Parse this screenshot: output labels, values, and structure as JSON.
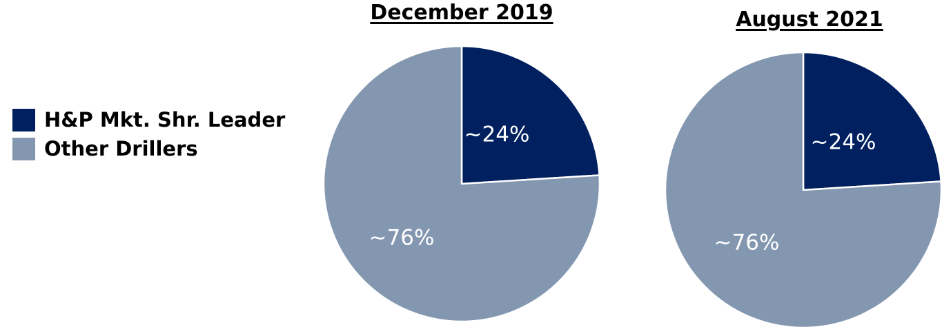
{
  "legend": {
    "items": [
      {
        "label": "H&P Mkt. Shr. Leader",
        "color": "#012060"
      },
      {
        "label": "Other Drillers",
        "color": "#8497b0"
      }
    ]
  },
  "chart_data": [
    {
      "type": "pie",
      "title": "December 2019",
      "slices": [
        {
          "name": "H&P Mkt. Shr. Leader",
          "value": 24,
          "label": "~24%",
          "color": "#012060"
        },
        {
          "name": "Other Drillers",
          "value": 76,
          "label": "~76%",
          "color": "#8497b0"
        }
      ]
    },
    {
      "type": "pie",
      "title": "August 2021",
      "slices": [
        {
          "name": "H&P Mkt. Shr. Leader",
          "value": 24,
          "label": "~24%",
          "color": "#012060"
        },
        {
          "name": "Other Drillers",
          "value": 76,
          "label": "~76%",
          "color": "#8497b0"
        }
      ]
    }
  ]
}
